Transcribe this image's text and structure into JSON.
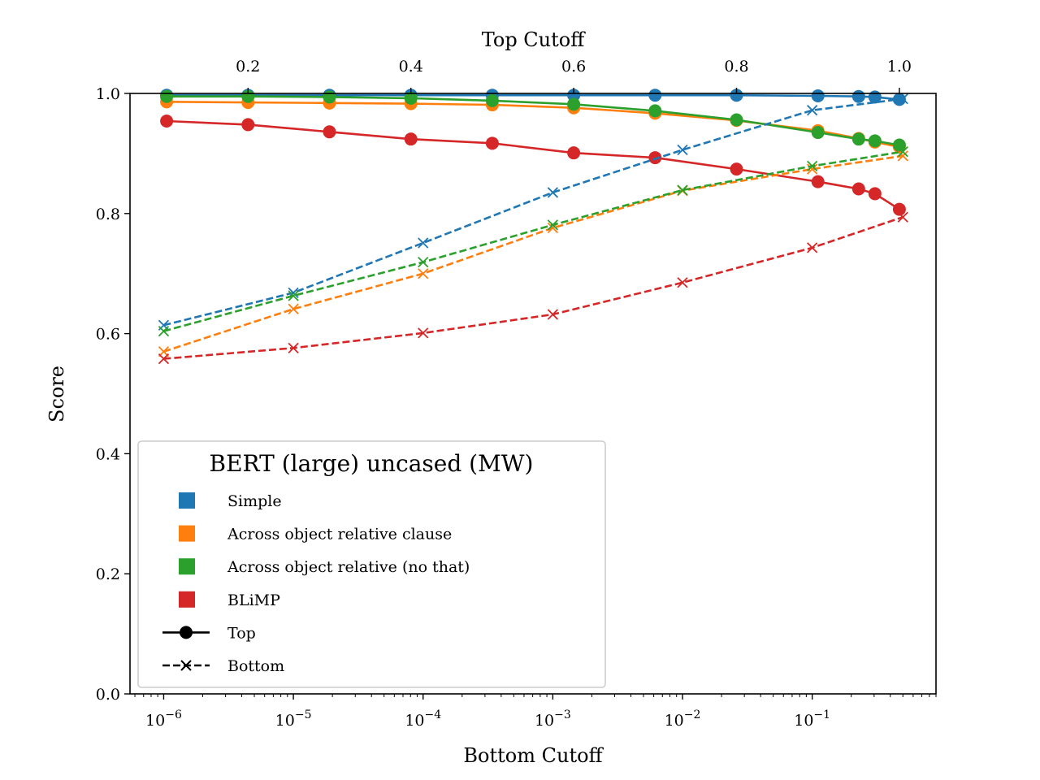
{
  "chart_data": {
    "type": "line",
    "legend": {
      "title": "BERT (large) uncased (MW)",
      "placement": "lower-left",
      "entries": [
        {
          "label": "Simple",
          "kind": "color",
          "color": "#1f77b4"
        },
        {
          "label": "Across object relative clause",
          "kind": "color",
          "color": "#ff7f0e"
        },
        {
          "label": "Across object relative (no that)",
          "kind": "color",
          "color": "#2ca02c"
        },
        {
          "label": "BLiMP",
          "kind": "color",
          "color": "#d62728"
        },
        {
          "label": "Top",
          "kind": "style",
          "style": "top"
        },
        {
          "label": "Bottom",
          "kind": "style",
          "style": "bottom"
        }
      ]
    },
    "y_axis": {
      "label": "Score",
      "range": [
        0.0,
        1.0
      ],
      "ticks": [
        0.0,
        0.2,
        0.4,
        0.6,
        0.8,
        1.0
      ],
      "tick_labels": [
        "0.0",
        "0.2",
        "0.4",
        "0.6",
        "0.8",
        "1.0"
      ]
    },
    "bottom_axis": {
      "label": "Bottom Cutoff",
      "scale": "log",
      "range": [
        5.5e-07,
        0.9
      ],
      "ticks": [
        1e-06,
        1e-05,
        0.0001,
        0.001,
        0.01,
        0.1
      ],
      "tick_labels": [
        {
          "base": "10",
          "exp": "−6"
        },
        {
          "base": "10",
          "exp": "−5"
        },
        {
          "base": "10",
          "exp": "−4"
        },
        {
          "base": "10",
          "exp": "−3"
        },
        {
          "base": "10",
          "exp": "−2"
        },
        {
          "base": "10",
          "exp": "−1"
        }
      ]
    },
    "top_axis": {
      "label": "Top Cutoff",
      "scale": "linear",
      "range": [
        0.055,
        1.045
      ],
      "ticks": [
        0.2,
        0.4,
        0.6,
        0.8,
        1.0
      ],
      "tick_labels": [
        "0.2",
        "0.4",
        "0.6",
        "0.8",
        "1.0"
      ]
    },
    "grid": false,
    "series": [
      {
        "name": "Simple",
        "group": "Top",
        "axis": "top",
        "color": "#1f77b4",
        "style": "top",
        "x": [
          0.1,
          0.2,
          0.3,
          0.4,
          0.5,
          0.6,
          0.7,
          0.8,
          0.9,
          0.95,
          0.97,
          1.0
        ],
        "y": [
          0.997,
          0.997,
          0.997,
          0.997,
          0.997,
          0.997,
          0.997,
          0.997,
          0.996,
          0.995,
          0.994,
          0.99
        ]
      },
      {
        "name": "Across object relative clause",
        "group": "Top",
        "axis": "top",
        "color": "#ff7f0e",
        "style": "top",
        "x": [
          0.1,
          0.2,
          0.3,
          0.4,
          0.5,
          0.6,
          0.7,
          0.8,
          0.9,
          0.95,
          0.97,
          1.0
        ],
        "y": [
          0.986,
          0.985,
          0.984,
          0.983,
          0.981,
          0.976,
          0.967,
          0.955,
          0.938,
          0.925,
          0.919,
          0.911
        ]
      },
      {
        "name": "Across object relative (no that)",
        "group": "Top",
        "axis": "top",
        "color": "#2ca02c",
        "style": "top",
        "x": [
          0.1,
          0.2,
          0.3,
          0.4,
          0.5,
          0.6,
          0.7,
          0.8,
          0.9,
          0.95,
          0.97,
          1.0
        ],
        "y": [
          0.995,
          0.995,
          0.994,
          0.992,
          0.988,
          0.982,
          0.971,
          0.956,
          0.935,
          0.924,
          0.921,
          0.914
        ]
      },
      {
        "name": "BLiMP",
        "group": "Top",
        "axis": "top",
        "color": "#d62728",
        "style": "top",
        "x": [
          0.1,
          0.2,
          0.3,
          0.4,
          0.5,
          0.6,
          0.7,
          0.8,
          0.9,
          0.95,
          0.97,
          1.0
        ],
        "y": [
          0.954,
          0.948,
          0.936,
          0.924,
          0.917,
          0.901,
          0.893,
          0.874,
          0.853,
          0.841,
          0.833,
          0.807
        ]
      },
      {
        "name": "Simple",
        "group": "Bottom",
        "axis": "bottom",
        "color": "#1f77b4",
        "style": "bottom",
        "x": [
          1e-06,
          1e-05,
          0.0001,
          0.001,
          0.01,
          0.1,
          0.5
        ],
        "y": [
          0.614,
          0.668,
          0.751,
          0.835,
          0.906,
          0.972,
          0.991
        ]
      },
      {
        "name": "Across object relative clause",
        "group": "Bottom",
        "axis": "bottom",
        "color": "#ff7f0e",
        "style": "bottom",
        "x": [
          1e-06,
          1e-05,
          0.0001,
          0.001,
          0.01,
          0.1,
          0.5
        ],
        "y": [
          0.57,
          0.641,
          0.7,
          0.776,
          0.838,
          0.874,
          0.896
        ]
      },
      {
        "name": "Across object relative (no that)",
        "group": "Bottom",
        "axis": "bottom",
        "color": "#2ca02c",
        "style": "bottom",
        "x": [
          1e-06,
          1e-05,
          0.0001,
          0.001,
          0.01,
          0.1,
          0.5
        ],
        "y": [
          0.604,
          0.663,
          0.719,
          0.781,
          0.839,
          0.879,
          0.903
        ]
      },
      {
        "name": "BLiMP",
        "group": "Bottom",
        "axis": "bottom",
        "color": "#d62728",
        "style": "bottom",
        "x": [
          1e-06,
          1e-05,
          0.0001,
          0.001,
          0.01,
          0.1,
          0.5
        ],
        "y": [
          0.558,
          0.576,
          0.601,
          0.632,
          0.685,
          0.743,
          0.794
        ]
      }
    ]
  }
}
